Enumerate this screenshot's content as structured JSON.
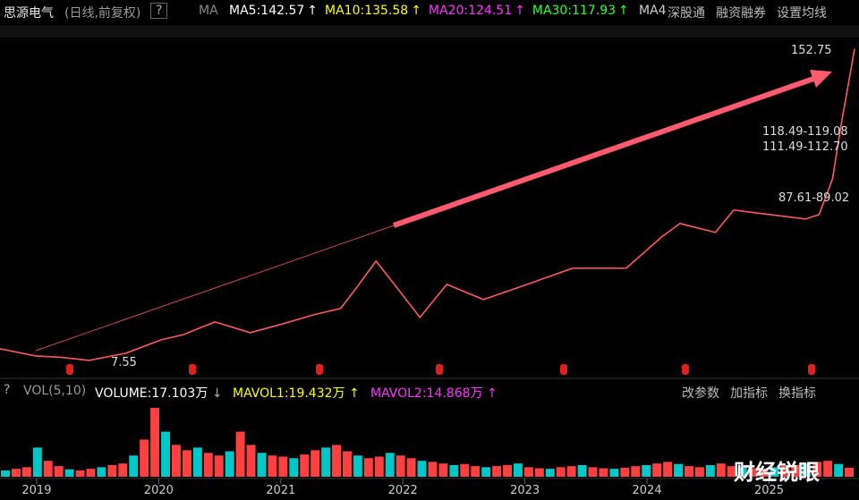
{
  "header": {
    "title": "思源电气",
    "subtitle": "(日线,前复权)",
    "help": "?",
    "ma_label": "MA",
    "ma_items": [
      {
        "text": "MA5:142.57",
        "arrow": "↑",
        "color": "#ffffff"
      },
      {
        "text": "MA10:135.58",
        "arrow": "↑",
        "color": "#ffff00"
      },
      {
        "text": "MA20:124.51",
        "arrow": "↑",
        "color": "#ff33ff"
      },
      {
        "text": "MA30:117.93",
        "arrow": "↑",
        "color": "#33ff33"
      }
    ],
    "ma_cut": "MA4",
    "links": [
      "深股通",
      "融资融券",
      "设置均线"
    ]
  },
  "chart_data": {
    "type": "line",
    "xlim": [
      2018.7,
      2025.7
    ],
    "ylim": [
      4.6,
      156.8
    ],
    "color": "#ff5a5a",
    "x": [
      2018.7,
      2018.99,
      2019.2,
      2019.43,
      2019.73,
      2020.02,
      2020.2,
      2020.46,
      2020.75,
      2021.02,
      2021.27,
      2021.49,
      2021.63,
      2021.78,
      2021.93,
      2022.14,
      2022.36,
      2022.66,
      2023.02,
      2023.39,
      2023.83,
      2024.12,
      2024.27,
      2024.56,
      2024.71,
      2025.0,
      2025.3,
      2025.41,
      2025.52,
      2025.59,
      2025.7
    ],
    "values": [
      12.97,
      9.63,
      9.0,
      7.55,
      10.89,
      17.15,
      19.5,
      25.49,
      20.48,
      24.65,
      28.83,
      31.75,
      42.18,
      53.86,
      43.01,
      27.58,
      43.01,
      35.92,
      43.01,
      50.52,
      50.52,
      65.12,
      71.38,
      67.2,
      77.64,
      75.55,
      73.46,
      75.55,
      92.24,
      117.27,
      152.75
    ],
    "annotations": [
      {
        "text": "152.75"
      },
      {
        "text": "118.49-119.08"
      },
      {
        "text": "111.49-112.70"
      },
      {
        "text": "87.61-89.02"
      },
      {
        "text": "7.55"
      }
    ],
    "xticks": [
      2019,
      2020,
      2021,
      2022,
      2023,
      2024,
      2025
    ]
  },
  "volume": {
    "header": {
      "help": "?",
      "name": "VOL(5,10)",
      "volume": "VOLUME:17.103万",
      "volume_arrow": "↓",
      "mavol1": "MAVOL1:19.432万",
      "mavol1_arrow": "↑",
      "mavol2": "MAVOL2:14.868万",
      "mavol2_arrow": "↑"
    },
    "buttons": [
      "改参数",
      "加指标",
      "换指标"
    ],
    "ylim": [
      0,
      140
    ],
    "values": [
      12,
      15,
      18,
      55,
      30,
      20,
      14,
      12,
      15,
      18,
      22,
      25,
      40,
      70,
      130,
      85,
      60,
      50,
      55,
      45,
      40,
      48,
      85,
      60,
      45,
      40,
      38,
      35,
      42,
      50,
      55,
      60,
      48,
      40,
      35,
      38,
      45,
      40,
      35,
      30,
      28,
      25,
      22,
      24,
      20,
      18,
      20,
      22,
      25,
      18,
      16,
      15,
      18,
      20,
      22,
      18,
      16,
      15,
      17,
      20,
      22,
      25,
      28,
      24,
      20,
      18,
      22,
      25,
      20,
      18,
      16,
      15,
      18,
      20,
      22,
      25,
      28,
      30,
      24,
      17
    ]
  },
  "watermark": "财经锐眼"
}
